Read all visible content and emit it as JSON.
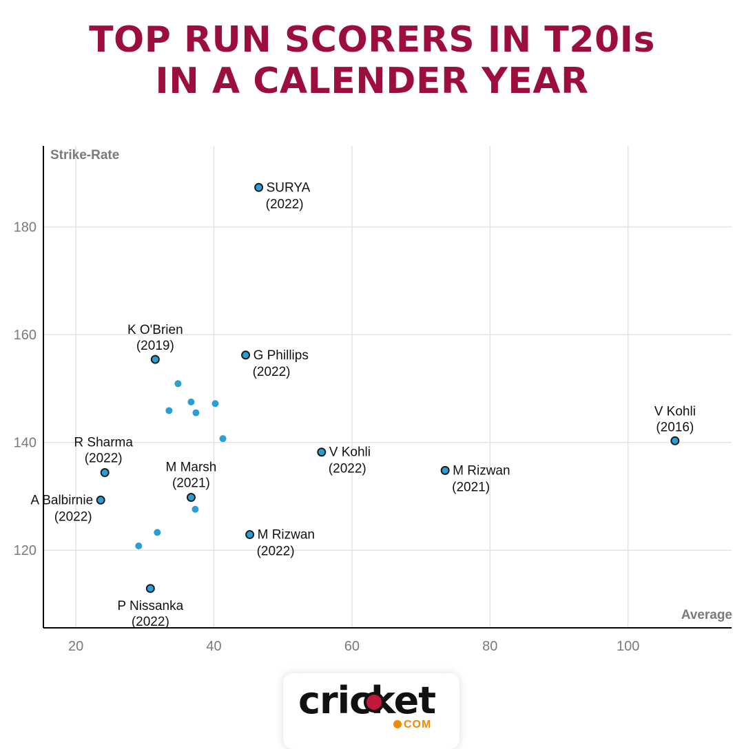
{
  "title": {
    "line1": "TOP RUN SCORERS IN T20Is",
    "line2": "IN A CALENDER YEAR"
  },
  "colors": {
    "title": "#9c0e3d",
    "point": "#2a9fd6",
    "point_stroke": "#1a1a1a",
    "grid": "#e3e3e3",
    "axis": "#000000",
    "tick": "#7a7a7a",
    "logo_accent": "#f08a00",
    "logo_ball": "#c2183a"
  },
  "chart_data": {
    "type": "scatter",
    "xlabel": "Average",
    "ylabel": "Strike-Rate",
    "xlim": [
      15.3,
      115
    ],
    "ylim": [
      105.6,
      195
    ],
    "xticks": [
      20,
      40,
      60,
      80,
      100
    ],
    "yticks": [
      120,
      140,
      160,
      180
    ],
    "grid": true,
    "labeled_points": [
      {
        "name": "SURYA",
        "year": "(2022)",
        "x": 46.5,
        "y": 187.3
      },
      {
        "name": "K O'Brien",
        "year": "(2019)",
        "x": 31.5,
        "y": 155.4
      },
      {
        "name": "G Phillips",
        "year": "(2022)",
        "x": 44.6,
        "y": 156.2
      },
      {
        "name": "V Kohli",
        "year": "(2016)",
        "x": 106.8,
        "y": 140.3
      },
      {
        "name": "R Sharma",
        "year": "(2022)",
        "x": 24.2,
        "y": 134.4
      },
      {
        "name": "V Kohli",
        "year": "(2022)",
        "x": 55.6,
        "y": 138.2
      },
      {
        "name": "M Rizwan",
        "year": "(2021)",
        "x": 73.5,
        "y": 134.8
      },
      {
        "name": "M Marsh",
        "year": "(2021)",
        "x": 36.7,
        "y": 129.8
      },
      {
        "name": "A Balbirnie",
        "year": "(2022)",
        "x": 23.6,
        "y": 129.3
      },
      {
        "name": "M Rizwan",
        "year": "(2022)",
        "x": 45.2,
        "y": 122.9
      },
      {
        "name": "P Nissanka",
        "year": "(2022)",
        "x": 30.8,
        "y": 112.9
      }
    ],
    "unlabeled_points": [
      {
        "x": 34.8,
        "y": 150.9
      },
      {
        "x": 36.7,
        "y": 147.5
      },
      {
        "x": 40.2,
        "y": 147.2
      },
      {
        "x": 33.5,
        "y": 145.9
      },
      {
        "x": 37.4,
        "y": 145.5
      },
      {
        "x": 41.3,
        "y": 140.7
      },
      {
        "x": 37.3,
        "y": 127.6
      },
      {
        "x": 31.8,
        "y": 123.3
      },
      {
        "x": 29.1,
        "y": 120.8
      }
    ]
  },
  "logo": {
    "word": "cricket",
    "suffix": "COM"
  }
}
